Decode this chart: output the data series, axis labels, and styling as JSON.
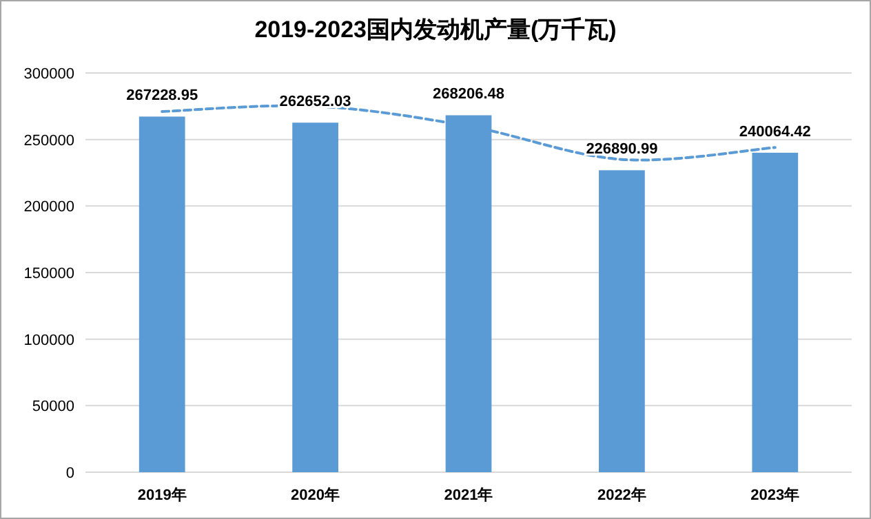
{
  "chart_data": {
    "type": "bar",
    "title": "2019-2023国内发动机产量(万千瓦)",
    "categories": [
      "2019年",
      "2020年",
      "2021年",
      "2022年",
      "2023年"
    ],
    "series": [
      {
        "color": "#5b9bd5",
        "values": [
          267228.95,
          262652.03,
          268206.48,
          226890.99,
          240064.42
        ],
        "value_labels": [
          "267228.95",
          "262652.03",
          "268206.48",
          "226890.99",
          "240064.42"
        ]
      },
      {
        "type": "line",
        "color": "#5b9bd5",
        "line_style": "dashed",
        "values": [
          271000,
          275000,
          260000,
          235000,
          244000
        ]
      }
    ],
    "ylim": [
      0,
      300000
    ],
    "yticks": [
      0,
      50000,
      100000,
      150000,
      200000,
      250000,
      300000
    ],
    "grid": "y"
  }
}
